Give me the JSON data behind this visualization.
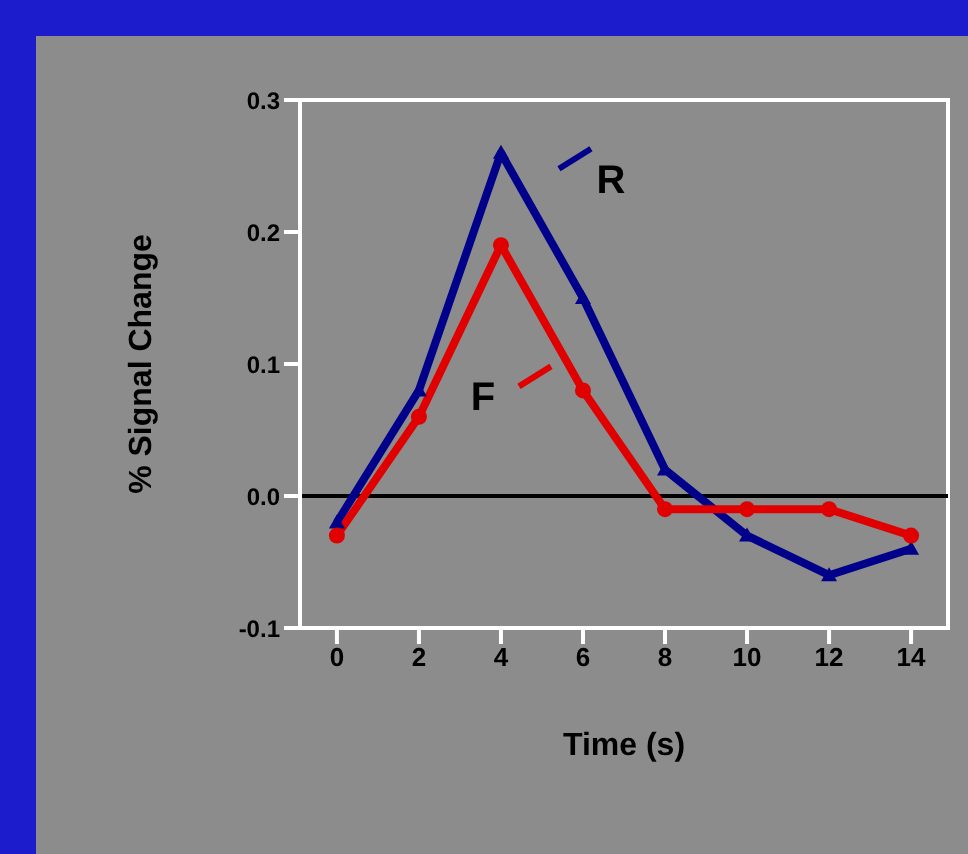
{
  "chart_data": {
    "type": "line",
    "xlabel": "Time (s)",
    "ylabel": "% Signal Change",
    "x": [
      0,
      2,
      4,
      6,
      8,
      10,
      12,
      14
    ],
    "series": [
      {
        "name": "R",
        "color": "#00008b",
        "marker": "triangle",
        "values": [
          -0.02,
          0.08,
          0.26,
          0.15,
          0.02,
          -0.03,
          -0.06,
          -0.04
        ]
      },
      {
        "name": "F",
        "color": "#e00000",
        "marker": "circle",
        "values": [
          -0.03,
          0.06,
          0.19,
          0.08,
          -0.01,
          -0.01,
          -0.01,
          -0.03
        ]
      }
    ],
    "xlim": [
      -0.9,
      14.9
    ],
    "xticks": [
      0,
      2,
      4,
      6,
      8,
      10,
      12,
      14
    ],
    "ylim": [
      -0.1,
      0.3
    ],
    "yticks": [
      -0.1,
      {
        "value": 0,
        "label": "0.0"
      },
      0.1,
      0.2,
      0.3
    ],
    "ref_lines": [
      {
        "axis": "y",
        "value": 0,
        "color": "#000000"
      }
    ],
    "legend": "top"
  }
}
